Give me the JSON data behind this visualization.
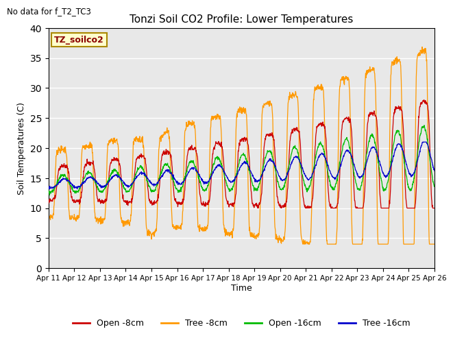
{
  "title": "Tonzi Soil CO2 Profile: Lower Temperatures",
  "subtitle": "No data for f_T2_TC3",
  "legend_label": "TZ_soilco2",
  "ylabel": "Soil Temperatures (C)",
  "xlabel": "Time",
  "ylim": [
    0,
    40
  ],
  "yticks": [
    0,
    5,
    10,
    15,
    20,
    25,
    30,
    35,
    40
  ],
  "xtick_labels": [
    "Apr 11",
    "Apr 12",
    "Apr 13",
    "Apr 14",
    "Apr 15",
    "Apr 16",
    "Apr 17",
    "Apr 18",
    "Apr 19",
    "Apr 20",
    "Apr 21",
    "Apr 22",
    "Apr 23",
    "Apr 24",
    "Apr 25",
    "Apr 26"
  ],
  "background_color": "#e8e8e8",
  "fig_background": "#ffffff",
  "series": {
    "open_8cm": {
      "color": "#cc0000",
      "label": "Open -8cm"
    },
    "tree_8cm": {
      "color": "#ff9900",
      "label": "Tree -8cm"
    },
    "open_16cm": {
      "color": "#00bb00",
      "label": "Open -16cm"
    },
    "tree_16cm": {
      "color": "#0000cc",
      "label": "Tree -16cm"
    }
  }
}
